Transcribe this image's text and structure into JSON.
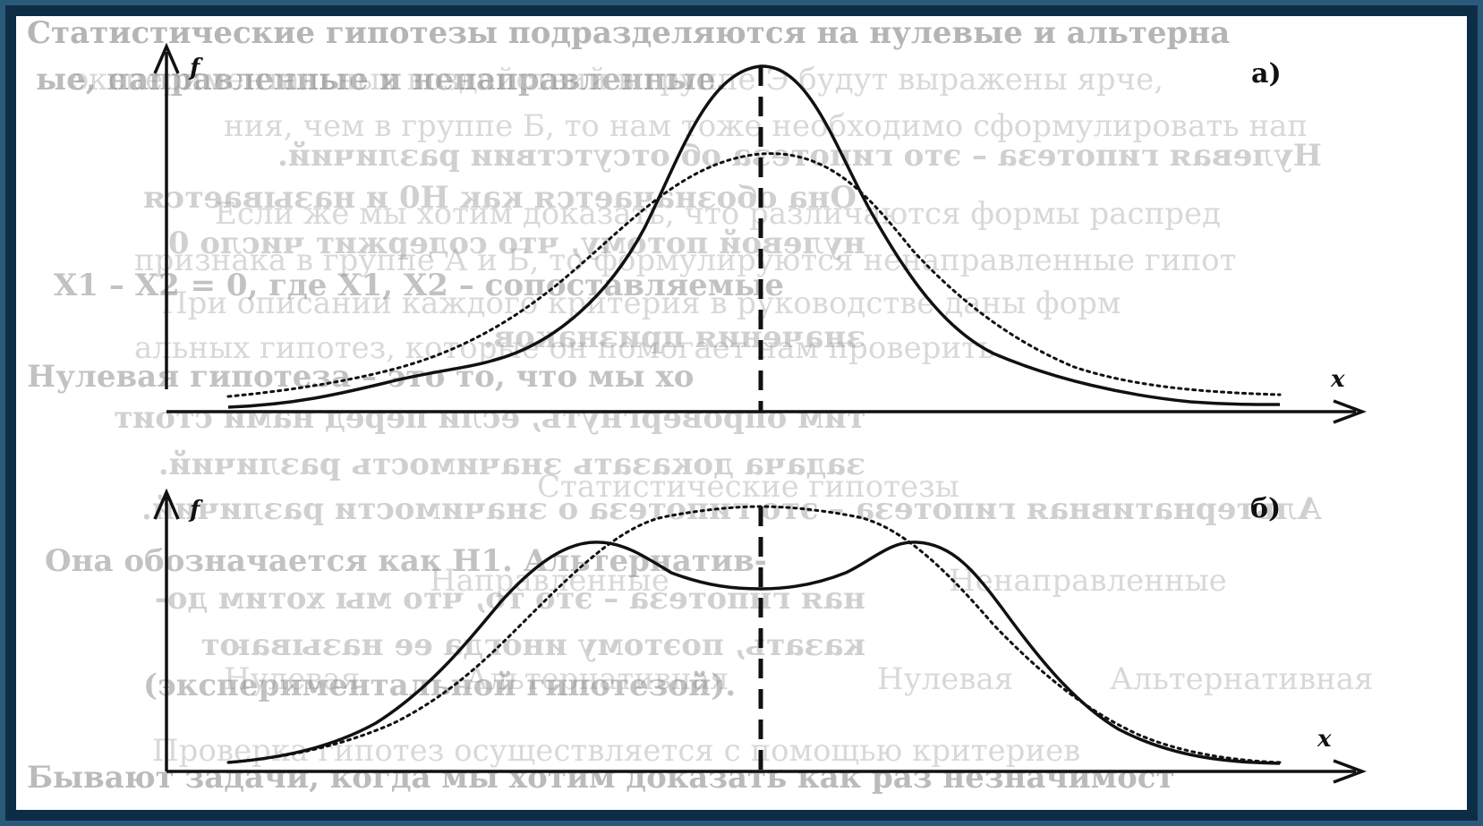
{
  "frame": {
    "outer_color": "#2a5a7a",
    "inner_color": "#0d2d46",
    "paper_color": "#ffffff",
    "ink_color": "#111111"
  },
  "panels": [
    {
      "id": "a",
      "label": "а)",
      "x_label": "x",
      "y_label": "f",
      "curves": [
        "solid-peaked",
        "dotted-flat"
      ],
      "center_line": "dashed"
    },
    {
      "id": "b",
      "label": "б)",
      "x_label": "x",
      "y_label": "f",
      "curves": [
        "solid-bimodal",
        "dotted-unimodal"
      ],
      "center_line": "dashed"
    }
  ]
}
